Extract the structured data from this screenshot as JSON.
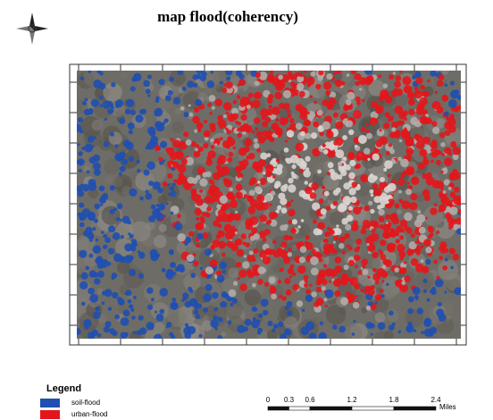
{
  "title": "map flood(coherency)",
  "legend": {
    "title": "Legend",
    "items": [
      {
        "label": "soil-flood",
        "color": "#1f4fb0"
      },
      {
        "label": "urban-flood",
        "color": "#e3161b"
      }
    ]
  },
  "scale_bar": {
    "labels": [
      0,
      0.3,
      0.6,
      1.2,
      1.8,
      2.4
    ],
    "unit": "Miles"
  }
}
